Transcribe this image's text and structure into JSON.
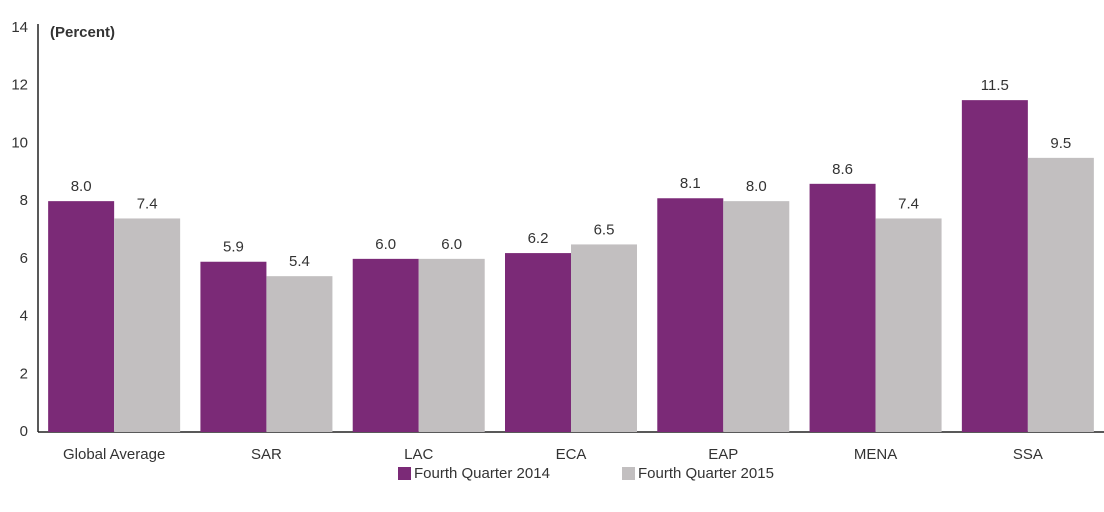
{
  "chart_data": {
    "type": "bar",
    "y_label": "(Percent)",
    "categories": [
      "Global Average",
      "SAR",
      "LAC",
      "ECA",
      "EAP",
      "MENA",
      "SSA"
    ],
    "series": [
      {
        "name": "Fourth Quarter 2014",
        "color": "#7b2a77",
        "values": [
          8.0,
          5.9,
          6.0,
          6.2,
          8.1,
          8.6,
          11.5
        ],
        "value_labels": [
          "8.0",
          "5.9",
          "6.0",
          "6.2",
          "8.1",
          "8.6",
          "11.5"
        ]
      },
      {
        "name": "Fourth Quarter 2015",
        "color": "#c2bfc0",
        "values": [
          7.4,
          5.4,
          6.0,
          6.5,
          8.0,
          7.4,
          9.5
        ],
        "value_labels": [
          "7.4",
          "5.4",
          "6.0",
          "6.5",
          "8.0",
          "7.4",
          "9.5"
        ]
      }
    ],
    "ylim": [
      0,
      14
    ],
    "yticks": [
      0,
      2,
      4,
      6,
      8,
      10,
      12,
      14
    ],
    "grid": false
  }
}
